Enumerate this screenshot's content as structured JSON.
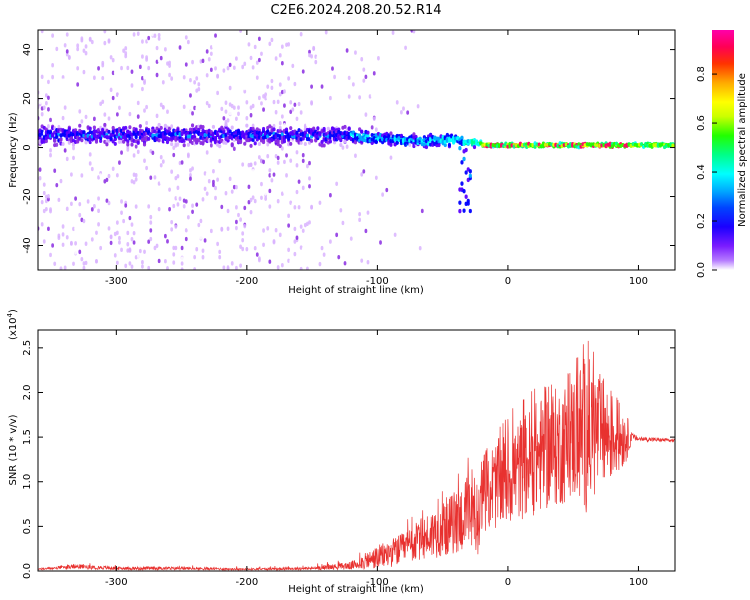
{
  "figure": {
    "title": "C2E6.2024.208.20.52.R14"
  },
  "colors": {
    "snr_line": "#e8312f",
    "colormap": [
      "#ffffff",
      "#d9b3ff",
      "#8a2be2",
      "#5b00ff",
      "#0000ff",
      "#00aaff",
      "#00ffff",
      "#00ff88",
      "#22ff00",
      "#ccff00",
      "#ffff00",
      "#ffaa00",
      "#ff3300",
      "#ff0066",
      "#ff00aa"
    ]
  },
  "chart_data": [
    {
      "type": "heatmap",
      "title": "",
      "xlabel": "Height of straight line (km)",
      "ylabel": "Frequency (Hz)",
      "xlim": [
        -360,
        128
      ],
      "ylim": [
        -50,
        48
      ],
      "xticks": [
        -300,
        -200,
        -100,
        0,
        100
      ],
      "yticks": [
        -40,
        -20,
        0,
        20,
        40
      ],
      "colorbar": {
        "label": "Normalized spectral amplitude",
        "range": [
          0.0,
          0.98
        ],
        "ticks": [
          0.0,
          0.2,
          0.4,
          0.6,
          0.8
        ]
      },
      "features": {
        "noise_region_x": [
          -360,
          -150
        ],
        "noisy_band_center_hz": 5,
        "converged_line_center_hz": 1,
        "converged_line_start_x": -35,
        "downward_tail_x": -30,
        "downward_tail_min_hz": -26,
        "peak_red_x_range": [
          -20,
          95
        ]
      }
    },
    {
      "type": "line",
      "title": "",
      "xlabel": "Height of straight line (km)",
      "ylabel": "SNR (10 * v/v)",
      "y_multiplier_label": "(x10",
      "y_multiplier_exp": "4",
      "y_multiplier_close": ")",
      "xlim": [
        -360,
        128
      ],
      "ylim": [
        0,
        2.7
      ],
      "xticks": [
        -300,
        -200,
        -100,
        0,
        100
      ],
      "yticks": [
        0.0,
        0.5,
        1.0,
        1.5,
        2.0,
        2.5
      ],
      "ytick_labels": [
        "0.0",
        "0.5",
        "1.0",
        "1.5",
        "2.0",
        "2.5"
      ],
      "series": [
        {
          "name": "",
          "x": [
            -360,
            -330,
            -300,
            -250,
            -200,
            -150,
            -120,
            -100,
            -80,
            -60,
            -40,
            -30,
            -22,
            -20,
            -10,
            0,
            10,
            20,
            30,
            40,
            50,
            60,
            70,
            80,
            90,
            95,
            100,
            128
          ],
          "y": [
            0.02,
            0.05,
            0.03,
            0.03,
            0.02,
            0.03,
            0.06,
            0.15,
            0.25,
            0.4,
            0.55,
            0.65,
            0.4,
            0.9,
            0.95,
            1.05,
            1.15,
            1.25,
            1.35,
            1.4,
            1.5,
            1.55,
            1.55,
            1.5,
            1.5,
            1.5,
            1.48,
            1.46
          ],
          "spread": [
            0.01,
            0.03,
            0.02,
            0.02,
            0.01,
            0.02,
            0.05,
            0.15,
            0.2,
            0.3,
            0.4,
            0.5,
            0.3,
            0.5,
            0.55,
            0.6,
            0.65,
            0.7,
            0.75,
            0.75,
            0.8,
            1.0,
            0.75,
            0.55,
            0.35,
            0.05,
            0.03,
            0.02
          ],
          "max": [
            0.06,
            0.1,
            0.07,
            0.07,
            0.05,
            0.07,
            0.18,
            0.35,
            0.55,
            0.75,
            1.05,
            1.3,
            0.9,
            1.3,
            1.55,
            1.75,
            1.95,
            2.05,
            2.1,
            2.15,
            2.3,
            2.65,
            2.3,
            2.0,
            1.9,
            1.55,
            1.52,
            1.49
          ]
        }
      ]
    }
  ]
}
